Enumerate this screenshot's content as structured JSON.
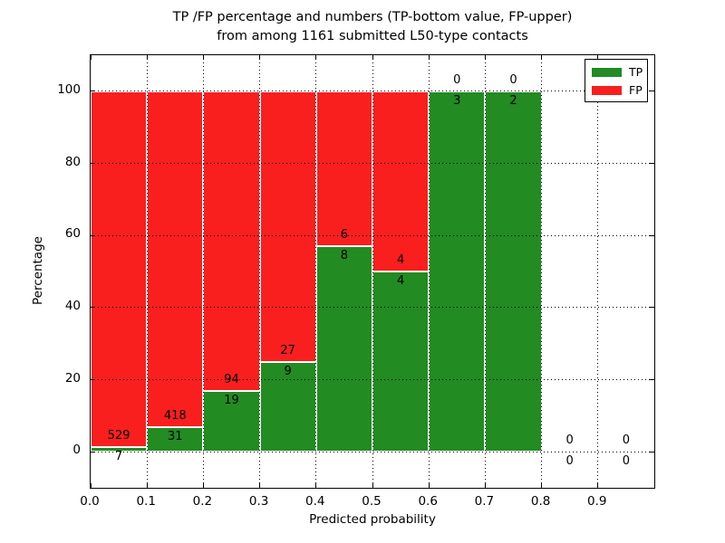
{
  "chart_data": {
    "type": "bar",
    "stacked": true,
    "title": "TP /FP percentage and numbers (TP-bottom value, FP-upper) from among 1161 submitted L50-type contacts",
    "title_line1": "TP /FP percentage and numbers (TP-bottom value, FP-upper)",
    "title_line2": "from among 1161 submitted L50-type contacts",
    "xlabel": "Predicted probability",
    "ylabel": "Percentage",
    "xlim": [
      0.0,
      1.0
    ],
    "ylim": [
      -10,
      110
    ],
    "x_tick_labels": [
      "0.0",
      "0.1",
      "0.2",
      "0.3",
      "0.4",
      "0.5",
      "0.6",
      "0.7",
      "0.8",
      "0.9"
    ],
    "y_tick_values": [
      0,
      20,
      40,
      60,
      80,
      100
    ],
    "grid": "dotted",
    "bar_width": 0.1,
    "bins": [
      {
        "x_start": 0.0,
        "x_end": 0.1,
        "tp_count": 7,
        "fp_count": 529,
        "tp_pct": 1.3,
        "fp_pct": 98.7
      },
      {
        "x_start": 0.1,
        "x_end": 0.2,
        "tp_count": 31,
        "fp_count": 418,
        "tp_pct": 6.9,
        "fp_pct": 93.1
      },
      {
        "x_start": 0.2,
        "x_end": 0.3,
        "tp_count": 19,
        "fp_count": 94,
        "tp_pct": 16.8,
        "fp_pct": 83.2
      },
      {
        "x_start": 0.3,
        "x_end": 0.4,
        "tp_count": 9,
        "fp_count": 27,
        "tp_pct": 25.0,
        "fp_pct": 75.0
      },
      {
        "x_start": 0.4,
        "x_end": 0.5,
        "tp_count": 8,
        "fp_count": 6,
        "tp_pct": 57.1,
        "fp_pct": 42.9
      },
      {
        "x_start": 0.5,
        "x_end": 0.6,
        "tp_count": 4,
        "fp_count": 4,
        "tp_pct": 50.0,
        "fp_pct": 50.0
      },
      {
        "x_start": 0.6,
        "x_end": 0.7,
        "tp_count": 3,
        "fp_count": 0,
        "tp_pct": 100.0,
        "fp_pct": 0.0
      },
      {
        "x_start": 0.7,
        "x_end": 0.8,
        "tp_count": 2,
        "fp_count": 0,
        "tp_pct": 100.0,
        "fp_pct": 0.0
      },
      {
        "x_start": 0.8,
        "x_end": 0.9,
        "tp_count": 0,
        "fp_count": 0,
        "tp_pct": 0.0,
        "fp_pct": 0.0
      },
      {
        "x_start": 0.9,
        "x_end": 1.0,
        "tp_count": 0,
        "fp_count": 0,
        "tp_pct": 0.0,
        "fp_pct": 0.0
      }
    ],
    "legend": {
      "position": "upper right",
      "entries": [
        {
          "label": "TP",
          "color": "#228b22"
        },
        {
          "label": "FP",
          "color": "#f91f1f"
        }
      ]
    },
    "colors": {
      "tp": "#228b22",
      "fp": "#f91f1f",
      "bar_edge": "#ffffff",
      "grid": "#000000",
      "axis": "#000000",
      "text": "#000000",
      "background": "#ffffff"
    }
  }
}
